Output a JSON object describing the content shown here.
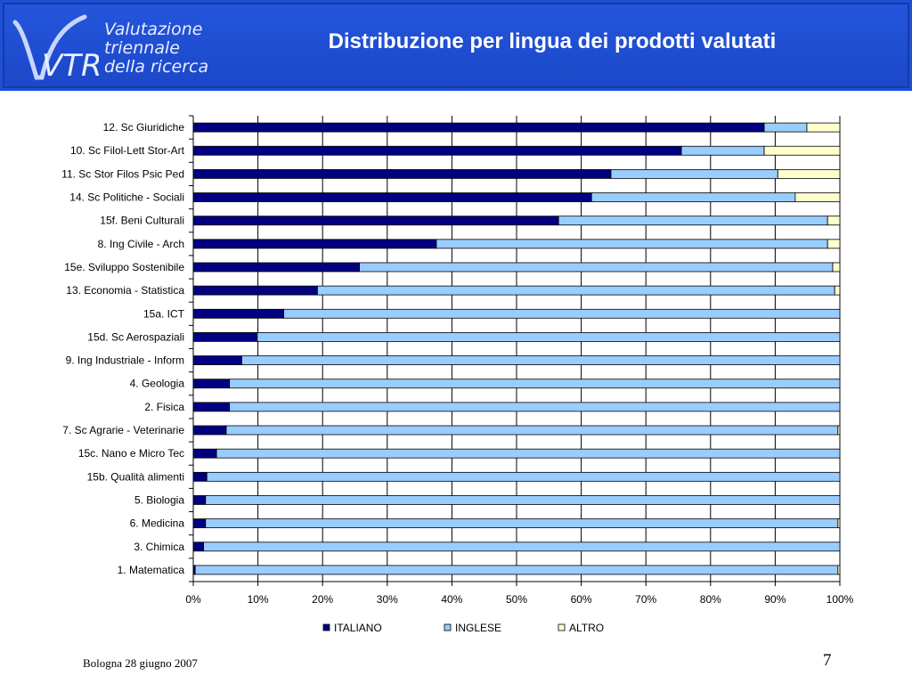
{
  "header": {
    "logo_lines": [
      "Valutazione",
      "triennale",
      "della ricerca"
    ],
    "logo_mark": "VTR",
    "title": "Distribuzione per lingua dei prodotti valutati",
    "colors": {
      "background": "#1f4fd6",
      "text": "#ffffff"
    }
  },
  "footer": {
    "left_text": "Bologna 28 giugno 2007",
    "page_number": "7"
  },
  "chart_data": {
    "type": "bar",
    "orientation": "horizontal",
    "stacked": "percent",
    "categories": [
      "12. Sc Giuridiche",
      "10. Sc Filol-Lett Stor-Art",
      "11. Sc Stor Filos Psic Ped",
      "14. Sc Politiche - Sociali",
      "15f. Beni Culturali",
      "8. Ing Civile - Arch",
      "15e. Sviluppo Sostenibile",
      "13.  Economia - Statistica",
      "15a. ICT",
      "15d. Sc Aerospaziali",
      "9. Ing Industriale - Inform",
      "4. Geologia",
      "2. Fisica",
      "7. Sc Agrarie - Veterinarie",
      "15c. Nano e Micro Tec",
      "15b. Qualità alimenti",
      "5. Biologia",
      "6. Medicina",
      "3. Chimica",
      "1. Matematica"
    ],
    "series": [
      {
        "name": "ITALIANO",
        "color": "#000080",
        "values": [
          88.3,
          75.5,
          64.6,
          61.6,
          56.5,
          37.6,
          25.7,
          19.2,
          14.0,
          9.9,
          7.5,
          5.6,
          5.6,
          5.1,
          3.6,
          2.1,
          1.9,
          1.9,
          1.6,
          0.3
        ]
      },
      {
        "name": "INGLESE",
        "color": "#99ccff",
        "values": [
          6.6,
          12.8,
          25.8,
          31.5,
          41.6,
          60.5,
          73.2,
          80.0,
          86.0,
          90.1,
          92.5,
          94.4,
          94.4,
          94.6,
          96.4,
          97.9,
          98.1,
          97.8,
          98.4,
          99.4
        ]
      },
      {
        "name": "ALTRO",
        "color": "#ffffcc",
        "values": [
          5.1,
          11.7,
          9.6,
          6.9,
          1.9,
          1.9,
          1.1,
          0.8,
          0.0,
          0.0,
          0.0,
          0.0,
          0.0,
          0.3,
          0.0,
          0.0,
          0.0,
          0.3,
          0.0,
          0.3
        ]
      }
    ],
    "x_ticks": [
      "0%",
      "10%",
      "20%",
      "30%",
      "40%",
      "50%",
      "60%",
      "70%",
      "80%",
      "90%",
      "100%"
    ],
    "xlim": [
      0,
      100
    ],
    "grid": "vertical",
    "legend": "bottom"
  }
}
